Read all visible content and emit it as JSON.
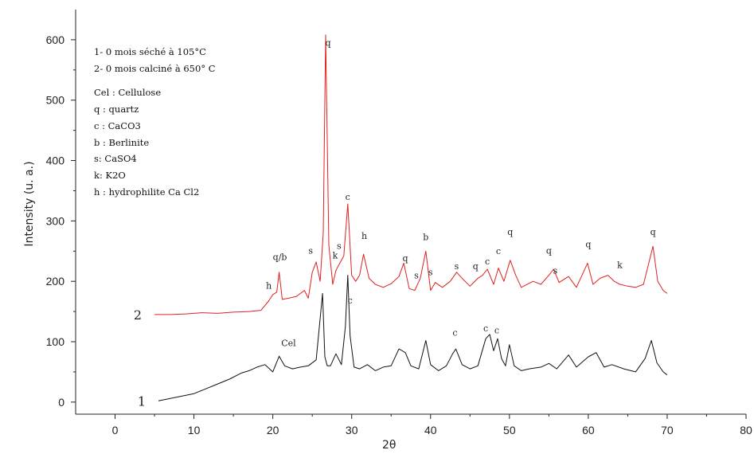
{
  "chart_data": {
    "type": "line",
    "title": "",
    "xlabel": "2θ",
    "ylabel": "Intensity (u. a.)",
    "xlim": [
      -5,
      80
    ],
    "ylim": [
      -20,
      650
    ],
    "x_ticks": [
      0,
      10,
      20,
      30,
      40,
      50,
      60,
      70,
      80
    ],
    "y_ticks": [
      0,
      100,
      200,
      300,
      400,
      500,
      600
    ],
    "grid": false,
    "legend": {
      "placement": "top-left",
      "lines": [
        "1- 0 mois séché à 105°C",
        "2- 0 mois calciné à 650° C",
        "Cel : Cellulose",
        "q : quartz",
        "c : CaCO3",
        "b : Berlinite",
        "s: CaSO4",
        "k: K2O",
        "h : hydrophilite Ca Cl2"
      ]
    },
    "series": [
      {
        "label": "1",
        "color": "#111111",
        "x": [
          5.5,
          7,
          8.5,
          10,
          11.5,
          13,
          14.5,
          16,
          17,
          18,
          19,
          20,
          20.8,
          21.5,
          22.5,
          23.5,
          24.5,
          25.5,
          26.3,
          26.6,
          26.9,
          27.3,
          28,
          28.7,
          29.2,
          29.5,
          29.8,
          30.3,
          31,
          32,
          33,
          34,
          35,
          36,
          36.8,
          37.5,
          38.5,
          39.4,
          40,
          41,
          42,
          42.8,
          43.2,
          44,
          45,
          46,
          47,
          47.5,
          48,
          48.5,
          49,
          49.5,
          50,
          50.6,
          51.5,
          52.5,
          54,
          55,
          56,
          57.5,
          58.5,
          60,
          61,
          62,
          63,
          64.5,
          66,
          67.2,
          68,
          68.7,
          69.5,
          70
        ],
        "y": [
          2,
          6,
          10,
          14,
          22,
          30,
          38,
          48,
          52,
          58,
          62,
          50,
          76,
          60,
          55,
          58,
          60,
          70,
          180,
          75,
          60,
          60,
          80,
          62,
          125,
          210,
          110,
          58,
          55,
          62,
          52,
          58,
          60,
          88,
          82,
          60,
          55,
          102,
          62,
          52,
          60,
          80,
          88,
          62,
          55,
          60,
          105,
          112,
          85,
          105,
          72,
          60,
          95,
          60,
          52,
          55,
          58,
          64,
          55,
          78,
          58,
          75,
          82,
          58,
          62,
          55,
          50,
          72,
          102,
          65,
          50,
          45
        ]
      },
      {
        "label": "2",
        "color": "#e02020",
        "x": [
          5,
          7,
          9,
          11,
          13,
          15,
          17,
          18.5,
          19.5,
          20,
          20.5,
          20.8,
          21.2,
          22,
          23,
          24,
          24.5,
          25,
          25.5,
          26,
          26.4,
          26.7,
          27.1,
          27.6,
          28,
          28.5,
          29,
          29.5,
          30,
          30.5,
          31,
          31.5,
          32.2,
          33,
          34,
          35,
          36,
          36.6,
          37.3,
          38,
          38.7,
          39.4,
          40,
          40.6,
          41.5,
          42.5,
          43.3,
          44,
          45,
          46,
          46.6,
          47.2,
          48,
          48.6,
          49.3,
          50.1,
          50.8,
          51.5,
          53,
          54,
          55,
          55.6,
          56.3,
          57.5,
          58.5,
          59.9,
          60.6,
          61.5,
          62.5,
          63.3,
          64,
          65,
          66,
          67,
          68.2,
          68.8,
          69.5,
          70
        ],
        "y": [
          145,
          145,
          146,
          148,
          147,
          149,
          150,
          152,
          168,
          178,
          182,
          215,
          170,
          172,
          175,
          185,
          172,
          215,
          232,
          200,
          280,
          608,
          260,
          195,
          218,
          230,
          242,
          328,
          210,
          200,
          210,
          245,
          205,
          195,
          190,
          196,
          208,
          230,
          188,
          185,
          205,
          250,
          185,
          198,
          190,
          200,
          215,
          205,
          192,
          205,
          210,
          220,
          195,
          222,
          200,
          235,
          210,
          190,
          200,
          195,
          210,
          220,
          198,
          208,
          190,
          230,
          195,
          205,
          210,
          200,
          195,
          192,
          190,
          195,
          258,
          200,
          185,
          180
        ]
      }
    ],
    "series_labels": [
      "1",
      "2"
    ],
    "peak_annotations": [
      {
        "text": "q",
        "x": 27,
        "y": 590
      },
      {
        "text": "c",
        "x": 29.5,
        "y": 335
      },
      {
        "text": "h",
        "x": 31.6,
        "y": 270
      },
      {
        "text": "b",
        "x": 39.4,
        "y": 268
      },
      {
        "text": "q",
        "x": 50.1,
        "y": 277
      },
      {
        "text": "q",
        "x": 68.2,
        "y": 277
      },
      {
        "text": "q",
        "x": 60,
        "y": 256
      },
      {
        "text": "q",
        "x": 55,
        "y": 246
      },
      {
        "text": "q",
        "x": 36.8,
        "y": 233
      },
      {
        "text": "q",
        "x": 45.7,
        "y": 220
      },
      {
        "text": "q/b",
        "x": 20.9,
        "y": 235
      },
      {
        "text": "s",
        "x": 24.8,
        "y": 246
      },
      {
        "text": "k",
        "x": 27.9,
        "y": 238
      },
      {
        "text": "s",
        "x": 28.4,
        "y": 254
      },
      {
        "text": "c",
        "x": 47.2,
        "y": 228
      },
      {
        "text": "c",
        "x": 48.6,
        "y": 245
      },
      {
        "text": "s",
        "x": 43.3,
        "y": 220
      },
      {
        "text": "s",
        "x": 38.2,
        "y": 205
      },
      {
        "text": "s",
        "x": 40,
        "y": 210
      },
      {
        "text": "s",
        "x": 55.8,
        "y": 213
      },
      {
        "text": "k",
        "x": 64,
        "y": 222
      },
      {
        "text": "h",
        "x": 19.5,
        "y": 188
      },
      {
        "text": "c",
        "x": 29.8,
        "y": 163
      },
      {
        "text": "Cel",
        "x": 22,
        "y": 93
      },
      {
        "text": "c",
        "x": 43.1,
        "y": 110
      },
      {
        "text": "c",
        "x": 47,
        "y": 117
      },
      {
        "text": "c",
        "x": 48.4,
        "y": 114
      }
    ]
  }
}
